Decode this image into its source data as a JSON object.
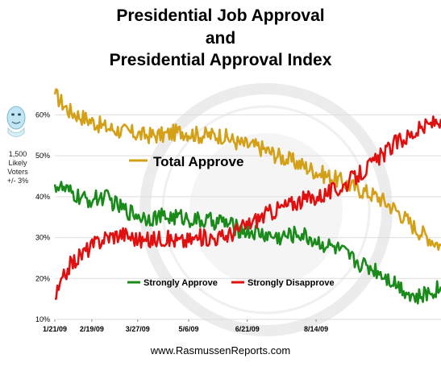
{
  "header": {
    "title_line1": "Presidential Job Approval",
    "title_line2": "and",
    "title_line3": "Presidential Approval Index"
  },
  "side_note": {
    "sample": "1,500",
    "line2": "Likely",
    "line3": "Voters",
    "margin": "+/- 3%"
  },
  "footer": {
    "url": "www.RasmussenReports.com"
  },
  "colors": {
    "total_approve": "#d4a017",
    "strongly_approve": "#1a8a1a",
    "strongly_disapprove": "#e01010",
    "grid": "#dddddd"
  },
  "icons": {
    "mascot": "presidential-face-icon",
    "seal": "presidential-seal-watermark"
  },
  "chart_data": {
    "type": "line",
    "title": "Presidential Job Approval and Presidential Approval Index",
    "xlabel": "",
    "ylabel": "",
    "ylim": [
      10,
      66
    ],
    "xlim": [
      "2009-01-21",
      "2009-11-20"
    ],
    "grid": "horizontal",
    "ytick_labels": [
      "10%",
      "20%",
      "30%",
      "40%",
      "50%",
      "60%"
    ],
    "yticks": [
      10,
      20,
      30,
      40,
      50,
      60
    ],
    "xtick_labels": [
      "1/21/09",
      "2/19/09",
      "3/27/09",
      "5/6/09",
      "6/21/09",
      "8/14/09"
    ],
    "xticks": [
      "2009-01-21",
      "2009-02-19",
      "2009-03-27",
      "2009-05-06",
      "2009-06-21",
      "2009-08-14"
    ],
    "legend": {
      "top": "Total Approve",
      "bottom": [
        "Strongly Approve",
        "Strongly Disapprove"
      ]
    },
    "series": [
      {
        "name": "Total Approve",
        "x": [
          "2009-01-21",
          "2009-02-01",
          "2009-02-15",
          "2009-03-01",
          "2009-03-15",
          "2009-04-01",
          "2009-04-15",
          "2009-05-01",
          "2009-05-15",
          "2009-06-01",
          "2009-06-15",
          "2009-07-01",
          "2009-07-15",
          "2009-08-01",
          "2009-08-15",
          "2009-09-01",
          "2009-09-15",
          "2009-10-01",
          "2009-10-15",
          "2009-11-01",
          "2009-11-20"
        ],
        "values": [
          65,
          61,
          59,
          57,
          56,
          55,
          55,
          56,
          55,
          55,
          53,
          52,
          50,
          48,
          46,
          44,
          42,
          40,
          37,
          32,
          28
        ]
      },
      {
        "name": "Strongly Approve",
        "x": [
          "2009-01-21",
          "2009-02-01",
          "2009-02-15",
          "2009-03-01",
          "2009-03-15",
          "2009-04-01",
          "2009-04-15",
          "2009-05-01",
          "2009-05-15",
          "2009-06-01",
          "2009-06-15",
          "2009-07-01",
          "2009-07-15",
          "2009-08-01",
          "2009-08-15",
          "2009-09-01",
          "2009-09-15",
          "2009-10-01",
          "2009-10-15",
          "2009-11-01",
          "2009-11-20"
        ],
        "values": [
          43,
          41,
          39,
          40,
          37,
          35,
          35,
          35,
          34,
          34,
          32,
          31,
          30,
          31,
          29,
          27,
          24,
          22,
          19,
          15,
          18
        ]
      },
      {
        "name": "Strongly Disapprove",
        "x": [
          "2009-01-21",
          "2009-02-01",
          "2009-02-15",
          "2009-03-01",
          "2009-03-15",
          "2009-04-01",
          "2009-04-15",
          "2009-05-01",
          "2009-05-15",
          "2009-06-01",
          "2009-06-15",
          "2009-07-01",
          "2009-07-15",
          "2009-08-01",
          "2009-08-15",
          "2009-09-01",
          "2009-09-15",
          "2009-10-01",
          "2009-10-15",
          "2009-11-01",
          "2009-11-20"
        ],
        "values": [
          15,
          23,
          27,
          30,
          31,
          29,
          30,
          29,
          30,
          30,
          32,
          35,
          37,
          39,
          40,
          42,
          45,
          49,
          53,
          56,
          59
        ]
      }
    ]
  }
}
